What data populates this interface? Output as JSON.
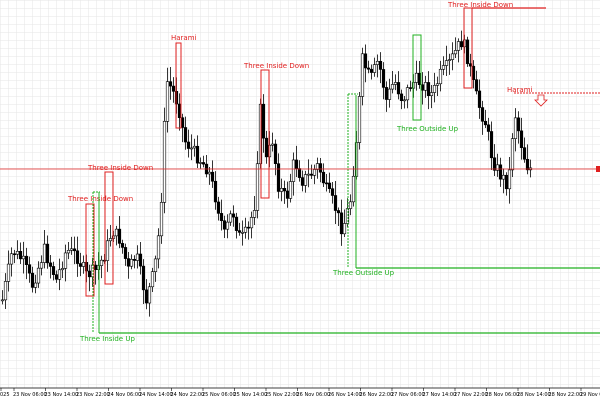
{
  "chart_data": {
    "type": "candlestick",
    "grid": true,
    "legend": "none",
    "colors": {
      "background": "#ffffff",
      "grid": "#e6e6e6",
      "candle": "#000000",
      "bearish": "#e02020",
      "bullish": "#20b020",
      "price_line": "#e02020"
    },
    "annotations": [
      {
        "label": "Harami",
        "color": "bearish"
      },
      {
        "label": "Three Inside Down",
        "color": "bearish"
      },
      {
        "label": "Three Inside Down",
        "color": "bearish"
      },
      {
        "label": "Three Inside Down",
        "color": "bearish"
      },
      {
        "label": "Three Inside Down",
        "color": "bearish"
      },
      {
        "label": "Harami",
        "color": "bearish"
      },
      {
        "label": "Three Outside Up",
        "color": "bullish"
      },
      {
        "label": "Three Outside Up",
        "color": "bullish"
      },
      {
        "label": "Three Inside Up",
        "color": "bullish"
      }
    ],
    "x_tick_labels": [
      "025",
      "23 Nov 06:00",
      "23 Nov 14:00",
      "23 Nov 22:00",
      "24 Nov 06:00",
      "24 Nov 14:00",
      "24 Nov 22:00",
      "25 Nov 06:00",
      "25 Nov 14:00",
      "25 Nov 22:00",
      "26 Nov 06:00",
      "26 Nov 14:00",
      "26 Nov 22:00",
      "27 Nov 06:00",
      "27 Nov 14:00",
      "27 Nov 22:00",
      "28 Nov 06:00",
      "28 Nov 14:00",
      "28 Nov 22:00",
      "29 Nov 06:00",
      "29 Nov 14:00"
    ]
  }
}
